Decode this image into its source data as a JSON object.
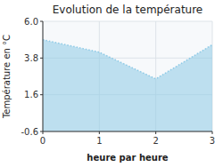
{
  "chart_data": {
    "type": "area",
    "title": "Evolution de la température",
    "xlabel": "heure par heure",
    "ylabel": "Température en °C",
    "x": [
      0,
      1,
      2,
      3
    ],
    "values": [
      4.9,
      4.15,
      2.55,
      4.6
    ],
    "color": "#8ecae6",
    "xlim": [
      0,
      3
    ],
    "ylim": [
      -0.6,
      6.0
    ],
    "xticks": [
      0,
      1,
      2,
      3
    ],
    "yticks": [
      -0.6,
      1.6,
      3.8,
      {
        "value": 6.0,
        "label": "6.0"
      }
    ],
    "grid": true
  }
}
